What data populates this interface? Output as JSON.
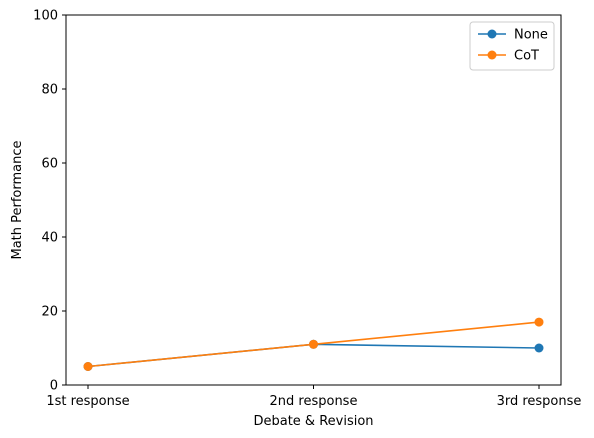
{
  "chart_data": {
    "type": "line",
    "title": "",
    "xlabel": "Debate & Revision",
    "ylabel": "Math Performance",
    "categories": [
      "1st response",
      "2nd response",
      "3rd response"
    ],
    "ylim": [
      0,
      100
    ],
    "yticks": [
      0,
      20,
      40,
      60,
      80,
      100
    ],
    "grid": false,
    "legend_position": "top-right",
    "series": [
      {
        "name": "None",
        "color": "#1f77b4",
        "marker": "circle",
        "values": [
          5,
          11,
          10
        ]
      },
      {
        "name": "CoT",
        "color": "#ff7f0e",
        "marker": "circle",
        "values": [
          5,
          11,
          17
        ]
      }
    ]
  }
}
